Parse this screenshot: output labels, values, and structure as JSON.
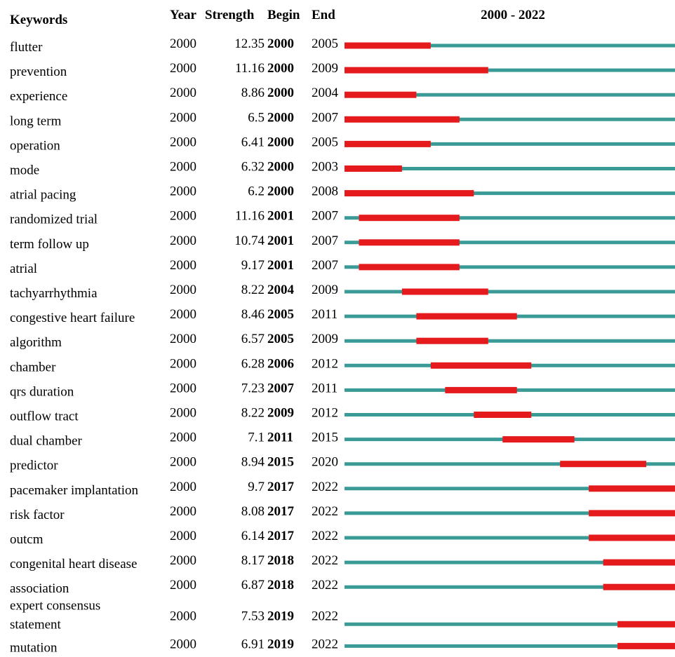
{
  "chart_data": {
    "type": "burst-timeline",
    "headers": {
      "keywords": "Keywords",
      "year": "Year",
      "strength": "Strength",
      "begin": "Begin",
      "end": "End",
      "range": "2000 - 2022"
    },
    "year_range": [
      2000,
      2022
    ],
    "colors": {
      "burst": "#e41a1c",
      "baseline": "#3a9a96"
    },
    "rows": [
      {
        "keyword": "flutter",
        "year": 2000,
        "strength": "12.35",
        "begin": 2000,
        "end": 2005
      },
      {
        "keyword": "prevention",
        "year": 2000,
        "strength": "11.16",
        "begin": 2000,
        "end": 2009
      },
      {
        "keyword": "experience",
        "year": 2000,
        "strength": "8.86",
        "begin": 2000,
        "end": 2004
      },
      {
        "keyword": "long term",
        "year": 2000,
        "strength": "6.5",
        "begin": 2000,
        "end": 2007
      },
      {
        "keyword": "operation",
        "year": 2000,
        "strength": "6.41",
        "begin": 2000,
        "end": 2005
      },
      {
        "keyword": "mode",
        "year": 2000,
        "strength": "6.32",
        "begin": 2000,
        "end": 2003
      },
      {
        "keyword": "atrial pacing",
        "year": 2000,
        "strength": "6.2",
        "begin": 2000,
        "end": 2008
      },
      {
        "keyword": "randomized trial",
        "year": 2000,
        "strength": "11.16",
        "begin": 2001,
        "end": 2007
      },
      {
        "keyword": "term follow up",
        "year": 2000,
        "strength": "10.74",
        "begin": 2001,
        "end": 2007
      },
      {
        "keyword": "atrial",
        "year": 2000,
        "strength": "9.17",
        "begin": 2001,
        "end": 2007
      },
      {
        "keyword": "tachyarrhythmia",
        "year": 2000,
        "strength": "8.22",
        "begin": 2004,
        "end": 2009
      },
      {
        "keyword": "congestive heart failure",
        "year": 2000,
        "strength": "8.46",
        "begin": 2005,
        "end": 2011
      },
      {
        "keyword": "algorithm",
        "year": 2000,
        "strength": "6.57",
        "begin": 2005,
        "end": 2009
      },
      {
        "keyword": "chamber",
        "year": 2000,
        "strength": "6.28",
        "begin": 2006,
        "end": 2012
      },
      {
        "keyword": "qrs duration",
        "year": 2000,
        "strength": "7.23",
        "begin": 2007,
        "end": 2011
      },
      {
        "keyword": "outflow tract",
        "year": 2000,
        "strength": "8.22",
        "begin": 2009,
        "end": 2012
      },
      {
        "keyword": "dual chamber",
        "year": 2000,
        "strength": "7.1",
        "begin": 2011,
        "end": 2015
      },
      {
        "keyword": "predictor",
        "year": 2000,
        "strength": "8.94",
        "begin": 2015,
        "end": 2020
      },
      {
        "keyword": "pacemaker implantation",
        "year": 2000,
        "strength": "9.7",
        "begin": 2017,
        "end": 2022
      },
      {
        "keyword": "risk factor",
        "year": 2000,
        "strength": "8.08",
        "begin": 2017,
        "end": 2022
      },
      {
        "keyword": "outcm",
        "year": 2000,
        "strength": "6.14",
        "begin": 2017,
        "end": 2022
      },
      {
        "keyword": "congenital heart disease",
        "year": 2000,
        "strength": "8.17",
        "begin": 2018,
        "end": 2022
      },
      {
        "keyword": "association",
        "year": 2000,
        "strength": "6.87",
        "begin": 2018,
        "end": 2022
      },
      {
        "keyword": [
          "expert consensus",
          "statement"
        ],
        "year": 2000,
        "strength": "7.53",
        "begin": 2019,
        "end": 2022
      },
      {
        "keyword": "mutation",
        "year": 2000,
        "strength": "6.91",
        "begin": 2019,
        "end": 2022
      }
    ]
  }
}
